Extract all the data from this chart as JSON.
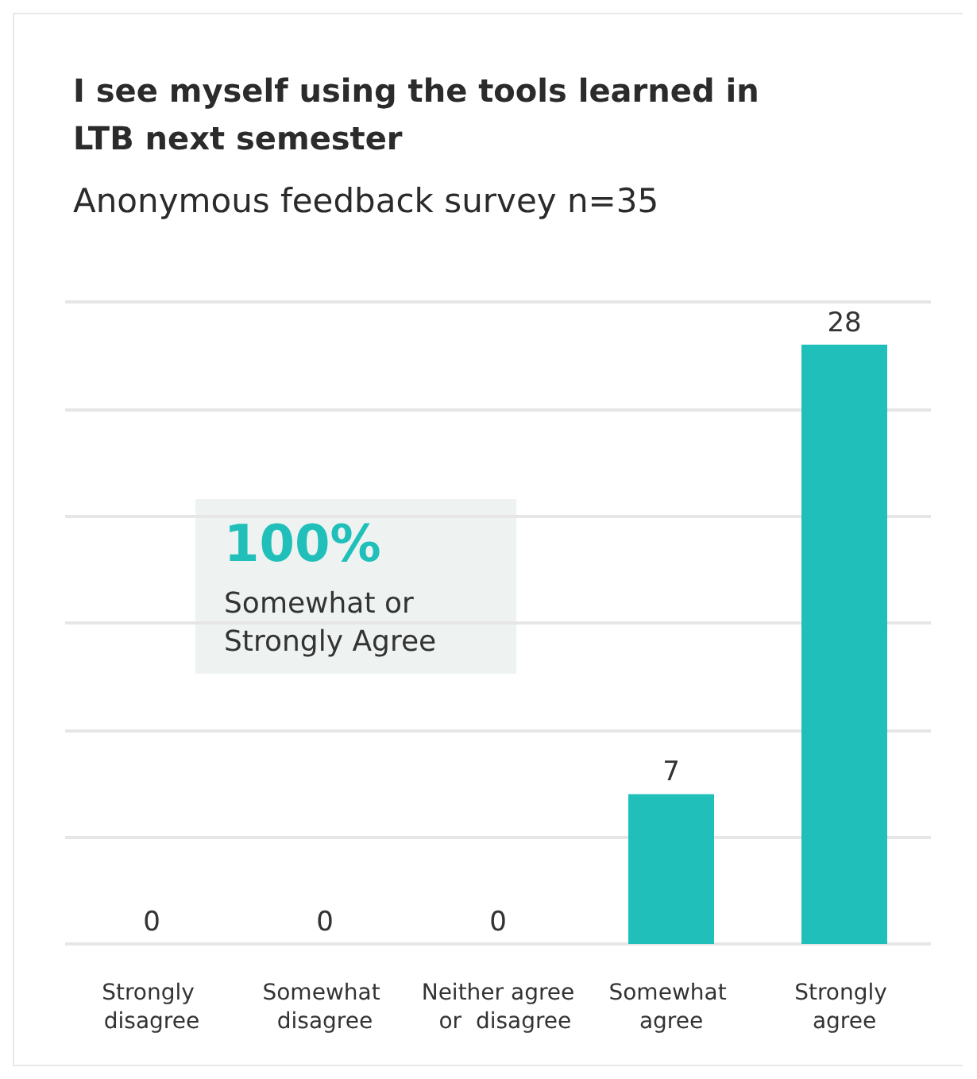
{
  "chart_data": {
    "type": "bar",
    "title": "I see myself using the tools learned in LTB next semester",
    "subtitle": "Anonymous feedback survey n=35",
    "categories": [
      "Strongly disagree",
      "Somewhat disagree",
      "Neither agree  or  disagree",
      "Somewhat agree",
      "Strongly agree"
    ],
    "values": [
      0,
      0,
      0,
      7,
      28
    ],
    "color": "#20bfb9",
    "ylim": [
      0,
      30
    ],
    "yticks": [
      {
        "value": 0,
        "label": null
      },
      {
        "value": 5,
        "label": null
      },
      {
        "value": 10,
        "label": null
      },
      {
        "value": 15,
        "label": null
      },
      {
        "value": 20,
        "label": null
      },
      {
        "value": 25,
        "label": null
      },
      {
        "value": 30,
        "label": null
      }
    ],
    "tick_labels": "x",
    "grid": "y",
    "data_labels": true,
    "annotations": [
      "100%",
      "Somewhat or Strongly Agree"
    ]
  }
}
